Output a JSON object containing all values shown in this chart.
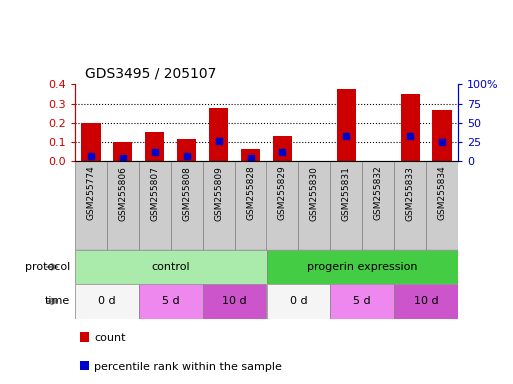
{
  "title": "GDS3495 / 205107",
  "samples": [
    "GSM255774",
    "GSM255806",
    "GSM255807",
    "GSM255808",
    "GSM255809",
    "GSM255828",
    "GSM255829",
    "GSM255830",
    "GSM255831",
    "GSM255832",
    "GSM255833",
    "GSM255834"
  ],
  "red_values": [
    0.2,
    0.1,
    0.155,
    0.118,
    0.275,
    0.065,
    0.13,
    0.0,
    0.378,
    0.0,
    0.352,
    0.265
  ],
  "blue_values": [
    0.03,
    0.018,
    0.048,
    0.03,
    0.105,
    0.015,
    0.048,
    0.0,
    0.133,
    0.0,
    0.133,
    0.1
  ],
  "ylim_left": [
    0,
    0.4
  ],
  "ylim_right": [
    0,
    100
  ],
  "yticks_left": [
    0.0,
    0.1,
    0.2,
    0.3,
    0.4
  ],
  "yticks_right": [
    0,
    25,
    50,
    75,
    100
  ],
  "ytick_labels_right": [
    "0",
    "25",
    "50",
    "75",
    "100%"
  ],
  "left_axis_color": "#cc0000",
  "right_axis_color": "#0000cc",
  "bar_color": "#cc0000",
  "dot_color": "#0000cc",
  "protocol_groups": [
    {
      "label": "control",
      "start": 0,
      "end": 6,
      "color": "#aaeaaa"
    },
    {
      "label": "progerin expression",
      "start": 6,
      "end": 12,
      "color": "#44cc44"
    }
  ],
  "time_groups": [
    {
      "label": "0 d",
      "start": 0,
      "end": 2,
      "color": "#f5f5f5"
    },
    {
      "label": "5 d",
      "start": 2,
      "end": 4,
      "color": "#ee88ee"
    },
    {
      "label": "10 d",
      "start": 4,
      "end": 6,
      "color": "#cc55cc"
    },
    {
      "label": "0 d",
      "start": 6,
      "end": 8,
      "color": "#f5f5f5"
    },
    {
      "label": "5 d",
      "start": 8,
      "end": 10,
      "color": "#ee88ee"
    },
    {
      "label": "10 d",
      "start": 10,
      "end": 12,
      "color": "#cc55cc"
    }
  ],
  "legend_items": [
    {
      "label": "count",
      "color": "#cc0000"
    },
    {
      "label": "percentile rank within the sample",
      "color": "#0000cc"
    }
  ],
  "protocol_label": "protocol",
  "time_label": "time",
  "background_color": "#ffffff",
  "tick_area_color": "#cccccc"
}
